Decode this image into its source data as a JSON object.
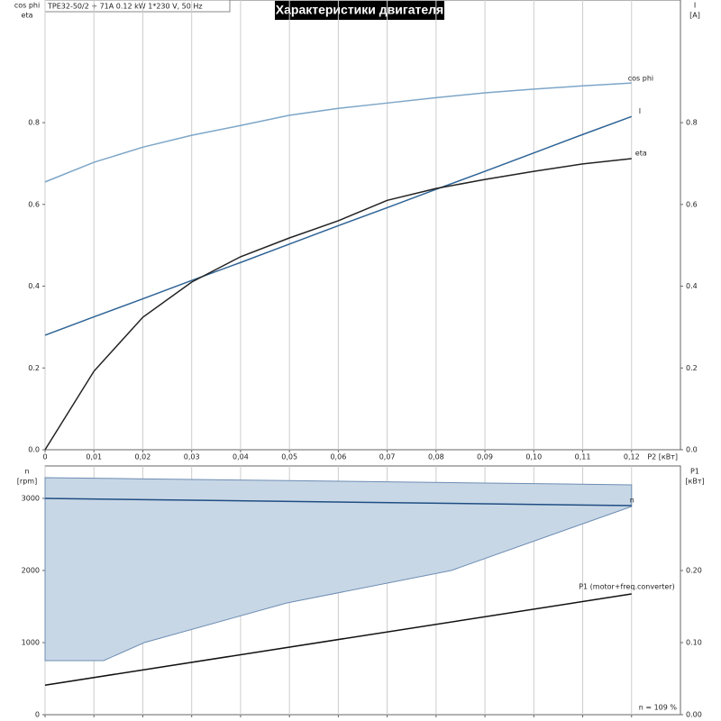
{
  "header": "TPE32-50/2 + 71A   0.12 kW   1*230 V, 50 Hz",
  "title": "Характеристики двигателя",
  "chart_data": [
    {
      "type": "line",
      "y_label": [
        "cos phi",
        "eta"
      ],
      "y2_label": [
        "I",
        "[A]"
      ],
      "x_label": "P2 [кВт]",
      "xlim": [
        0,
        0.13
      ],
      "xticks": [
        {
          "value": 0,
          "label": "0"
        },
        {
          "value": 0.01,
          "label": "0,01"
        },
        {
          "value": 0.02,
          "label": "0,02"
        },
        {
          "value": 0.03,
          "label": "0,03"
        },
        {
          "value": 0.04,
          "label": "0,04"
        },
        {
          "value": 0.05,
          "label": "0,05"
        },
        {
          "value": 0.06,
          "label": "0,06"
        },
        {
          "value": 0.07,
          "label": "0,07"
        },
        {
          "value": 0.08,
          "label": "0,08"
        },
        {
          "value": 0.09,
          "label": "0,09"
        },
        {
          "value": 0.1,
          "label": "0,10"
        },
        {
          "value": 0.11,
          "label": "0,11"
        },
        {
          "value": 0.12,
          "label": "0,12"
        }
      ],
      "ylim": [
        0,
        1.1
      ],
      "yticks": [
        {
          "value": 0,
          "label": "0.0"
        },
        {
          "value": 0.2,
          "label": "0.2"
        },
        {
          "value": 0.4,
          "label": "0.4"
        },
        {
          "value": 0.6,
          "label": "0.6"
        },
        {
          "value": 0.8,
          "label": "0.8"
        }
      ],
      "y2lim": [
        0,
        1.1
      ],
      "y2ticks": [
        {
          "value": 0,
          "label": "0.0"
        },
        {
          "value": 0.2,
          "label": "0.2"
        },
        {
          "value": 0.4,
          "label": "0.4"
        },
        {
          "value": 0.6,
          "label": "0.6"
        },
        {
          "value": 0.8,
          "label": "0.8"
        }
      ],
      "grid": true,
      "x": [
        0,
        0.01,
        0.02,
        0.03,
        0.04,
        0.05,
        0.06,
        0.07,
        0.08,
        0.09,
        0.1,
        0.11,
        0.12
      ],
      "series": [
        {
          "name": "cos phi",
          "color": "#7da6c8",
          "values": [
            0.655,
            0.703,
            0.74,
            0.769,
            0.793,
            0.818,
            0.835,
            0.848,
            0.861,
            0.873,
            0.882,
            0.89,
            0.897
          ]
        },
        {
          "name": "I",
          "color": "#2f6496",
          "axis": "y2",
          "values": [
            0.28,
            0.325,
            0.369,
            0.414,
            0.458,
            0.503,
            0.548,
            0.592,
            0.637,
            0.681,
            0.726,
            0.771,
            0.815
          ]
        },
        {
          "name": "eta",
          "color": "#222222",
          "values": [
            0,
            0.192,
            0.324,
            0.41,
            0.472,
            0.518,
            0.56,
            0.61,
            0.639,
            0.661,
            0.681,
            0.699,
            0.712
          ]
        }
      ]
    },
    {
      "type": "line",
      "y_label": [
        "n",
        "[rpm]"
      ],
      "y2_label": [
        "P1",
        "[кВт]"
      ],
      "note": "n = 109 %",
      "xlim": [
        0,
        0.13
      ],
      "xticks": [
        0,
        0.01,
        0.02,
        0.03,
        0.04,
        0.05,
        0.06,
        0.07,
        0.08,
        0.09,
        0.1,
        0.11,
        0.12
      ],
      "ylim": [
        0,
        3450
      ],
      "yticks": [
        0,
        1000,
        2000,
        3000
      ],
      "y2lim": [
        0,
        0.345
      ],
      "y2ticks": [
        {
          "value": 0,
          "label": "0.00"
        },
        {
          "value": 0.1,
          "label": "0.10"
        },
        {
          "value": 0.2,
          "label": "0.20"
        }
      ],
      "grid": true,
      "band": {
        "color": "#c8d7e6",
        "x": [
          0,
          0.012,
          0.0203,
          0.0495,
          0.0831,
          0.12
        ],
        "upper": [
          3288,
          3278,
          3271,
          3247,
          3219,
          3188
        ],
        "lower": [
          750,
          750,
          1000,
          1550,
          2000,
          2888
        ]
      },
      "series": [
        {
          "name": "n",
          "color": "#1f4e82",
          "x": [
            0,
            0.12
          ],
          "values": [
            3000,
            2900
          ]
        },
        {
          "name": "P1 (motor+freq.converter)",
          "color": "#111111",
          "axis": "y2",
          "x": [
            0,
            0.12
          ],
          "values": [
            0.041,
            0.1675
          ]
        }
      ]
    }
  ]
}
